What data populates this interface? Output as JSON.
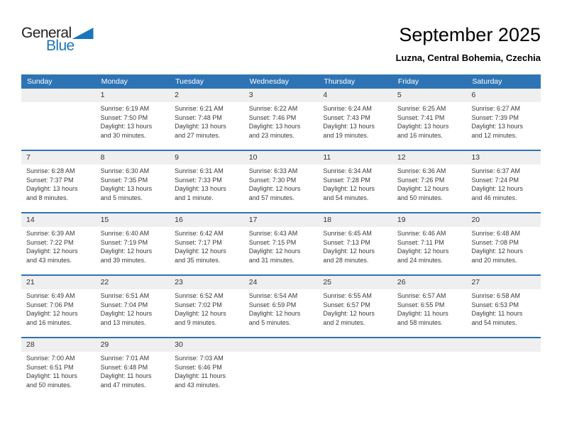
{
  "logo": {
    "general": "General",
    "blue": "Blue"
  },
  "header": {
    "title": "September 2025",
    "subtitle": "Luzna, Central Bohemia, Czechia"
  },
  "colors": {
    "header_bg": "#2E74B5",
    "week_separator": "#2E74B5",
    "number_band_bg": "#EFEFEF",
    "logo_blue": "#1B75BC",
    "logo_black": "#231F20",
    "detail_text": "#3A3A3A"
  },
  "calendar": {
    "weekdays": [
      "Sunday",
      "Monday",
      "Tuesday",
      "Wednesday",
      "Thursday",
      "Friday",
      "Saturday"
    ],
    "weeks": [
      {
        "days": [
          null,
          {
            "n": "1",
            "lines": [
              "Sunrise: 6:19 AM",
              "Sunset: 7:50 PM",
              "Daylight: 13 hours",
              "and 30 minutes."
            ]
          },
          {
            "n": "2",
            "lines": [
              "Sunrise: 6:21 AM",
              "Sunset: 7:48 PM",
              "Daylight: 13 hours",
              "and 27 minutes."
            ]
          },
          {
            "n": "3",
            "lines": [
              "Sunrise: 6:22 AM",
              "Sunset: 7:46 PM",
              "Daylight: 13 hours",
              "and 23 minutes."
            ]
          },
          {
            "n": "4",
            "lines": [
              "Sunrise: 6:24 AM",
              "Sunset: 7:43 PM",
              "Daylight: 13 hours",
              "and 19 minutes."
            ]
          },
          {
            "n": "5",
            "lines": [
              "Sunrise: 6:25 AM",
              "Sunset: 7:41 PM",
              "Daylight: 13 hours",
              "and 16 minutes."
            ]
          },
          {
            "n": "6",
            "lines": [
              "Sunrise: 6:27 AM",
              "Sunset: 7:39 PM",
              "Daylight: 13 hours",
              "and 12 minutes."
            ]
          }
        ]
      },
      {
        "days": [
          {
            "n": "7",
            "lines": [
              "Sunrise: 6:28 AM",
              "Sunset: 7:37 PM",
              "Daylight: 13 hours",
              "and 8 minutes."
            ]
          },
          {
            "n": "8",
            "lines": [
              "Sunrise: 6:30 AM",
              "Sunset: 7:35 PM",
              "Daylight: 13 hours",
              "and 5 minutes."
            ]
          },
          {
            "n": "9",
            "lines": [
              "Sunrise: 6:31 AM",
              "Sunset: 7:33 PM",
              "Daylight: 13 hours",
              "and 1 minute."
            ]
          },
          {
            "n": "10",
            "lines": [
              "Sunrise: 6:33 AM",
              "Sunset: 7:30 PM",
              "Daylight: 12 hours",
              "and 57 minutes."
            ]
          },
          {
            "n": "11",
            "lines": [
              "Sunrise: 6:34 AM",
              "Sunset: 7:28 PM",
              "Daylight: 12 hours",
              "and 54 minutes."
            ]
          },
          {
            "n": "12",
            "lines": [
              "Sunrise: 6:36 AM",
              "Sunset: 7:26 PM",
              "Daylight: 12 hours",
              "and 50 minutes."
            ]
          },
          {
            "n": "13",
            "lines": [
              "Sunrise: 6:37 AM",
              "Sunset: 7:24 PM",
              "Daylight: 12 hours",
              "and 46 minutes."
            ]
          }
        ]
      },
      {
        "days": [
          {
            "n": "14",
            "lines": [
              "Sunrise: 6:39 AM",
              "Sunset: 7:22 PM",
              "Daylight: 12 hours",
              "and 43 minutes."
            ]
          },
          {
            "n": "15",
            "lines": [
              "Sunrise: 6:40 AM",
              "Sunset: 7:19 PM",
              "Daylight: 12 hours",
              "and 39 minutes."
            ]
          },
          {
            "n": "16",
            "lines": [
              "Sunrise: 6:42 AM",
              "Sunset: 7:17 PM",
              "Daylight: 12 hours",
              "and 35 minutes."
            ]
          },
          {
            "n": "17",
            "lines": [
              "Sunrise: 6:43 AM",
              "Sunset: 7:15 PM",
              "Daylight: 12 hours",
              "and 31 minutes."
            ]
          },
          {
            "n": "18",
            "lines": [
              "Sunrise: 6:45 AM",
              "Sunset: 7:13 PM",
              "Daylight: 12 hours",
              "and 28 minutes."
            ]
          },
          {
            "n": "19",
            "lines": [
              "Sunrise: 6:46 AM",
              "Sunset: 7:11 PM",
              "Daylight: 12 hours",
              "and 24 minutes."
            ]
          },
          {
            "n": "20",
            "lines": [
              "Sunrise: 6:48 AM",
              "Sunset: 7:08 PM",
              "Daylight: 12 hours",
              "and 20 minutes."
            ]
          }
        ]
      },
      {
        "days": [
          {
            "n": "21",
            "lines": [
              "Sunrise: 6:49 AM",
              "Sunset: 7:06 PM",
              "Daylight: 12 hours",
              "and 16 minutes."
            ]
          },
          {
            "n": "22",
            "lines": [
              "Sunrise: 6:51 AM",
              "Sunset: 7:04 PM",
              "Daylight: 12 hours",
              "and 13 minutes."
            ]
          },
          {
            "n": "23",
            "lines": [
              "Sunrise: 6:52 AM",
              "Sunset: 7:02 PM",
              "Daylight: 12 hours",
              "and 9 minutes."
            ]
          },
          {
            "n": "24",
            "lines": [
              "Sunrise: 6:54 AM",
              "Sunset: 6:59 PM",
              "Daylight: 12 hours",
              "and 5 minutes."
            ]
          },
          {
            "n": "25",
            "lines": [
              "Sunrise: 6:55 AM",
              "Sunset: 6:57 PM",
              "Daylight: 12 hours",
              "and 2 minutes."
            ]
          },
          {
            "n": "26",
            "lines": [
              "Sunrise: 6:57 AM",
              "Sunset: 6:55 PM",
              "Daylight: 11 hours",
              "and 58 minutes."
            ]
          },
          {
            "n": "27",
            "lines": [
              "Sunrise: 6:58 AM",
              "Sunset: 6:53 PM",
              "Daylight: 11 hours",
              "and 54 minutes."
            ]
          }
        ]
      },
      {
        "days": [
          {
            "n": "28",
            "lines": [
              "Sunrise: 7:00 AM",
              "Sunset: 6:51 PM",
              "Daylight: 11 hours",
              "and 50 minutes."
            ]
          },
          {
            "n": "29",
            "lines": [
              "Sunrise: 7:01 AM",
              "Sunset: 6:48 PM",
              "Daylight: 11 hours",
              "and 47 minutes."
            ]
          },
          {
            "n": "30",
            "lines": [
              "Sunrise: 7:03 AM",
              "Sunset: 6:46 PM",
              "Daylight: 11 hours",
              "and 43 minutes."
            ]
          },
          null,
          null,
          null,
          null
        ]
      }
    ]
  }
}
